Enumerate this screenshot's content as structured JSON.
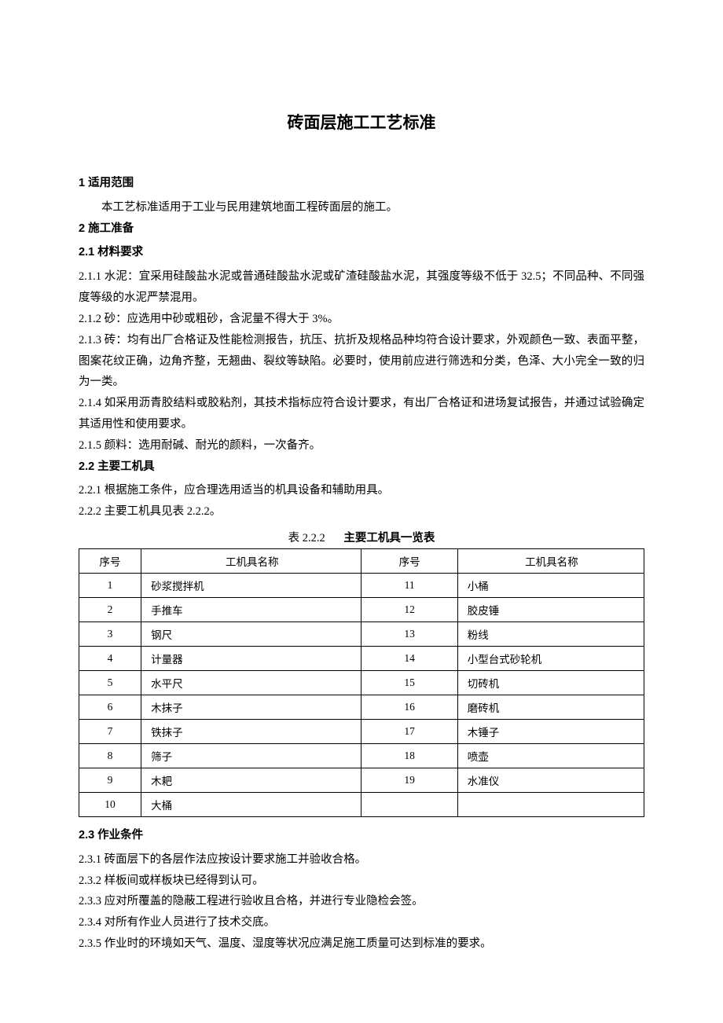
{
  "title": "砖面层施工工艺标准",
  "s1": {
    "heading": "1  适用范围",
    "p1": "本工艺标准适用于工业与民用建筑地面工程砖面层的施工。"
  },
  "s2": {
    "heading": "2  施工准备",
    "s2_1": {
      "heading": "2.1  材料要求",
      "p1": "2.1.1  水泥：宜采用硅酸盐水泥或普通硅酸盐水泥或矿渣硅酸盐水泥，其强度等级不低于 32.5；不同品种、不同强度等级的水泥严禁混用。",
      "p2": "2.1.2  砂：应选用中砂或粗砂，含泥量不得大于 3%。",
      "p3": "2.1.3  砖：均有出厂合格证及性能检测报告，抗压、抗折及规格品种均符合设计要求，外观颜色一致、表面平整，图案花纹正确，边角齐整，无翘曲、裂纹等缺陷。必要时，使用前应进行筛选和分类，色泽、大小完全一致的归为一类。",
      "p4": "2.1.4  如采用沥青胶结料或胶粘剂，其技术指标应符合设计要求，有出厂合格证和进场复试报告，并通过试验确定其适用性和使用要求。",
      "p5": "2.1.5  颜料：选用耐碱、耐光的颜料，一次备齐。"
    },
    "s2_2": {
      "heading": "2.2  主要工机具",
      "p1": "2.2.1  根据施工条件，应合理选用适当的机具设备和辅助用具。",
      "p2": "2.2.2  主要工机具见表 2.2.2。"
    },
    "s2_3": {
      "heading": "2.3  作业条件",
      "p1": "2.3.1  砖面层下的各层作法应按设计要求施工并验收合格。",
      "p2": "2.3.2  样板间或样板块已经得到认可。",
      "p3": "2.3.3  应对所覆盖的隐蔽工程进行验收且合格，并进行专业隐检会签。",
      "p4": "2.3.4  对所有作业人员进行了技术交底。",
      "p5": "2.3.5  作业时的环境如天气、温度、湿度等状况应满足施工质量可达到标准的要求。"
    }
  },
  "table": {
    "caption_num": "表 2.2.2",
    "caption_title": "主要工机具一览表",
    "headers": [
      "序号",
      "工机具名称",
      "序号",
      "工机具名称"
    ],
    "rows": [
      [
        "1",
        "砂浆搅拌机",
        "11",
        "小桶"
      ],
      [
        "2",
        "手推车",
        "12",
        "胶皮锤"
      ],
      [
        "3",
        "钢尺",
        "13",
        "粉线"
      ],
      [
        "4",
        "计量器",
        "14",
        "小型台式砂轮机"
      ],
      [
        "5",
        "水平尺",
        "15",
        "切砖机"
      ],
      [
        "6",
        "木抹子",
        "16",
        "磨砖机"
      ],
      [
        "7",
        "铁抹子",
        "17",
        "木锤子"
      ],
      [
        "8",
        "筛子",
        "18",
        "喷壶"
      ],
      [
        "9",
        "木耙",
        "19",
        "水准仪"
      ],
      [
        "10",
        "大桶",
        "",
        ""
      ]
    ]
  }
}
